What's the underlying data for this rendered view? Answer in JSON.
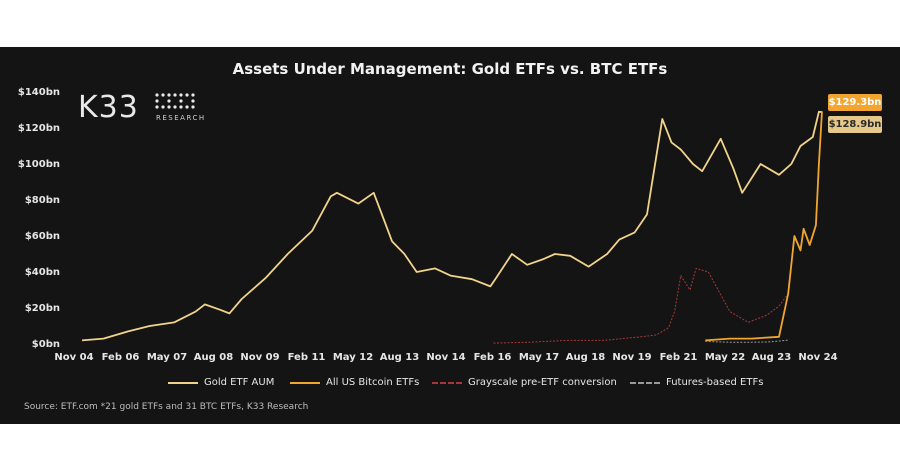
{
  "chart_data": {
    "type": "line",
    "title": "Assets Under Management: Gold ETFs vs. BTC ETFs",
    "xlabel": "",
    "ylabel": "",
    "x_tick_labels": [
      "Nov 04",
      "Feb 06",
      "May 07",
      "Aug 08",
      "Nov 09",
      "Feb 11",
      "May 12",
      "Aug 13",
      "Nov 14",
      "Feb 16",
      "May 17",
      "Aug 18",
      "Nov 19",
      "Feb 21",
      "May 22",
      "Aug 23",
      "Nov 24"
    ],
    "y_tick_labels": [
      "$0bn",
      "$20bn",
      "$40bn",
      "$60bn",
      "$80bn",
      "$100bn",
      "$120bn",
      "$140bn"
    ],
    "ylim": [
      0,
      140
    ],
    "xlim": [
      "2004-11",
      "2024-12"
    ],
    "grid": false,
    "legend_position": "bottom",
    "series": [
      {
        "name": "Gold ETF AUM",
        "color": "#f1d38a",
        "x": [
          "2004-11",
          "2005-06",
          "2006-02",
          "2006-09",
          "2007-05",
          "2007-12",
          "2008-03",
          "2008-08",
          "2008-11",
          "2009-03",
          "2009-11",
          "2010-06",
          "2011-02",
          "2011-08",
          "2011-10",
          "2012-05",
          "2012-10",
          "2013-04",
          "2013-08",
          "2013-12",
          "2014-06",
          "2014-11",
          "2015-06",
          "2015-12",
          "2016-02",
          "2016-07",
          "2016-12",
          "2017-05",
          "2017-09",
          "2018-02",
          "2018-08",
          "2019-02",
          "2019-06",
          "2019-11",
          "2020-03",
          "2020-08",
          "2020-11",
          "2021-02",
          "2021-06",
          "2021-09",
          "2022-03",
          "2022-07",
          "2022-10",
          "2023-04",
          "2023-10",
          "2024-02",
          "2024-05",
          "2024-09",
          "2024-11",
          "2024-12"
        ],
        "values": [
          2,
          3,
          7,
          10,
          12,
          18,
          22,
          19,
          17,
          25,
          37,
          50,
          63,
          82,
          84,
          78,
          84,
          57,
          50,
          40,
          42,
          38,
          36,
          32,
          37,
          50,
          44,
          47,
          50,
          49,
          43,
          50,
          58,
          62,
          72,
          125,
          112,
          108,
          100,
          96,
          114,
          98,
          84,
          100,
          94,
          100,
          110,
          115,
          129,
          128.9
        ]
      },
      {
        "name": "All US Bitcoin ETFs",
        "color": "#f2a630",
        "x": [
          "2021-10",
          "2022-06",
          "2023-01",
          "2023-10",
          "2024-01",
          "2024-03",
          "2024-05",
          "2024-06",
          "2024-08",
          "2024-10",
          "2024-11",
          "2024-12"
        ],
        "values": [
          2,
          3,
          3,
          4,
          28,
          60,
          52,
          64,
          55,
          66,
          100,
          129.3
        ]
      },
      {
        "name": "Grayscale pre-ETF conversion",
        "color": "#a83838",
        "x": [
          "2016-01",
          "2017-01",
          "2018-01",
          "2019-01",
          "2020-01",
          "2020-06",
          "2020-10",
          "2020-12",
          "2021-02",
          "2021-05",
          "2021-07",
          "2021-11",
          "2022-06",
          "2022-12",
          "2023-06",
          "2023-10",
          "2024-01"
        ],
        "values": [
          0.5,
          1,
          2,
          2,
          4,
          5,
          9,
          18,
          38,
          30,
          42,
          40,
          18,
          12,
          16,
          21,
          28
        ]
      },
      {
        "name": "Futures-based ETFs",
        "color": "#9a9a9a",
        "x": [
          "2021-10",
          "2022-01",
          "2022-06",
          "2023-01",
          "2023-06",
          "2023-11",
          "2024-01"
        ],
        "values": [
          1.5,
          1.2,
          1.0,
          1.0,
          1.1,
          1.8,
          2.2
        ]
      }
    ],
    "callouts": [
      {
        "label": "$129.3bn",
        "value": 129.3,
        "series": "All US Bitcoin ETFs",
        "bg": "#f2a630",
        "fg": "#ffffff"
      },
      {
        "label": "$128.9bn",
        "value": 128.9,
        "series": "Gold ETF AUM",
        "bg": "#e6c98a",
        "fg": "#2a2a2a"
      }
    ]
  },
  "logo": {
    "name": "K33",
    "sub": "RESEARCH"
  },
  "source_text": "Source: ETF.com *21 gold ETFs and 31 BTC ETFs, K33 Research"
}
